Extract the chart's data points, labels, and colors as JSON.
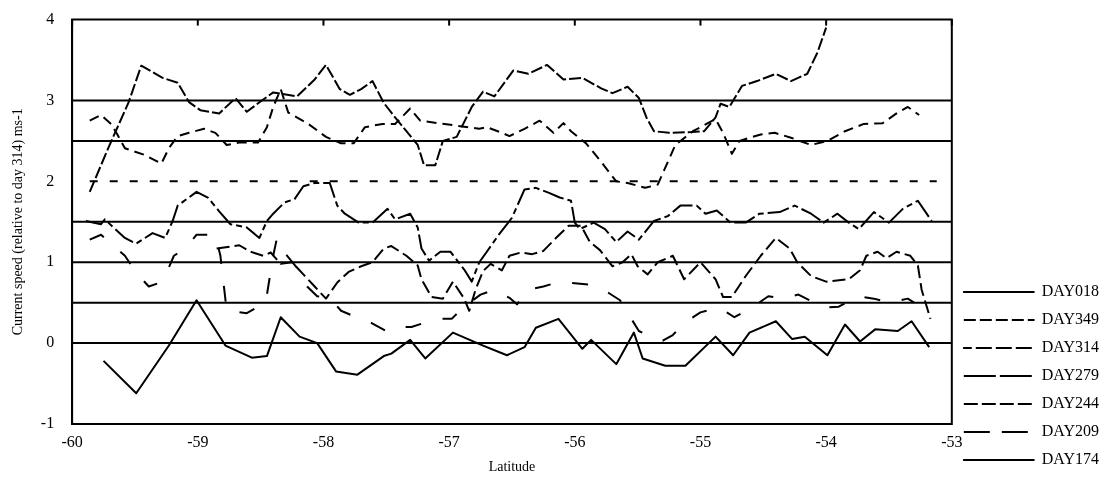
{
  "chart_data": {
    "type": "line",
    "xlabel": "Latitude",
    "ylabel": "Current speed (relative to day 314) ms-1",
    "xlim": [
      -60,
      -53
    ],
    "xticks": [
      -60,
      -59,
      -58,
      -57,
      -56,
      -55,
      -54,
      -53
    ],
    "ylim": [
      -1,
      4
    ],
    "yticks": [
      -1,
      0,
      1,
      2,
      3,
      4
    ],
    "grid": false,
    "legend": "right",
    "marker": "none",
    "ref_lines": [
      {
        "axis": "y",
        "value": 0,
        "color": "#000000",
        "line_style": "solid"
      },
      {
        "axis": "y",
        "value": 0.5,
        "color": "#000000",
        "line_style": "solid"
      },
      {
        "axis": "y",
        "value": 1,
        "color": "#000000",
        "line_style": "solid"
      },
      {
        "axis": "y",
        "value": 1.5,
        "color": "#000000",
        "line_style": "solid"
      },
      {
        "axis": "y",
        "value": 2.5,
        "color": "#000000",
        "line_style": "solid"
      },
      {
        "axis": "y",
        "value": 3,
        "color": "#000000",
        "line_style": "solid"
      }
    ],
    "series": [
      {
        "name": "DAY018",
        "color": "#000000",
        "line_style": "dashed",
        "x": [
          -59.86,
          -59.71,
          -59.55,
          -59.45,
          -59.28,
          -59.16,
          -59.07,
          -58.98,
          -58.83,
          -58.7,
          -58.61,
          -58.49,
          -58.4,
          -58.21,
          -58.07,
          -57.98,
          -57.87,
          -57.79,
          -57.7,
          -57.61,
          -57.52,
          -57.43,
          -57.25,
          -57.2,
          -57.17,
          -57.11,
          -57.05,
          -56.94,
          -56.82,
          -56.73,
          -56.64,
          -56.49,
          -56.37,
          -56.22,
          -56.09,
          -55.94,
          -55.79,
          -55.7,
          -55.58,
          -55.49,
          -55.43,
          -55.37,
          -55.25,
          -55.07,
          -54.97,
          -54.88,
          -54.84,
          -54.77,
          -54.67,
          -54.55,
          -54.4,
          -54.28,
          -54.15,
          -54.07,
          -54.0
        ],
        "values": [
          1.87,
          2.42,
          2.98,
          3.43,
          3.28,
          3.22,
          2.98,
          2.88,
          2.84,
          3.03,
          2.86,
          3.0,
          3.1,
          3.05,
          3.26,
          3.44,
          3.14,
          3.07,
          3.14,
          3.24,
          2.97,
          2.79,
          2.45,
          2.2,
          2.2,
          2.2,
          2.5,
          2.55,
          2.92,
          3.11,
          3.05,
          3.37,
          3.33,
          3.44,
          3.26,
          3.28,
          3.15,
          3.09,
          3.17,
          3.03,
          2.79,
          2.62,
          2.6,
          2.61,
          2.62,
          2.79,
          2.96,
          2.92,
          3.18,
          3.24,
          3.33,
          3.24,
          3.33,
          3.59,
          3.9
        ]
      },
      {
        "name": "DAY349",
        "color": "#000000",
        "line_style": "dashed",
        "x": [
          -59.86,
          -59.77,
          -59.69,
          -59.64,
          -59.58,
          -59.43,
          -59.29,
          -59.23,
          -59.16,
          -59.07,
          -58.95,
          -58.86,
          -58.77,
          -58.67,
          -58.52,
          -58.45,
          -58.4,
          -58.34,
          -58.28,
          -58.13,
          -57.98,
          -57.86,
          -57.76,
          -57.67,
          -57.53,
          -57.43,
          -57.31,
          -57.23,
          -56.76,
          -56.7,
          -56.58,
          -56.52,
          -56.4,
          -56.28,
          -56.17,
          -56.09,
          -56.03,
          -55.91,
          -55.79,
          -55.67,
          -55.58,
          -55.44,
          -55.34,
          -55.2,
          -55.06,
          -54.88,
          -54.82,
          -54.75,
          -54.69,
          -54.52,
          -54.41,
          -54.28,
          -54.12,
          -53.99,
          -53.85,
          -53.7,
          -53.55,
          -53.44,
          -53.35,
          -53.26
        ],
        "values": [
          2.75,
          2.82,
          2.71,
          2.58,
          2.41,
          2.33,
          2.22,
          2.41,
          2.56,
          2.6,
          2.65,
          2.6,
          2.45,
          2.48,
          2.48,
          2.67,
          2.92,
          3.14,
          2.85,
          2.72,
          2.55,
          2.47,
          2.47,
          2.67,
          2.71,
          2.71,
          2.9,
          2.75,
          2.65,
          2.67,
          2.6,
          2.56,
          2.65,
          2.75,
          2.6,
          2.72,
          2.62,
          2.47,
          2.24,
          2.0,
          1.98,
          1.92,
          1.96,
          2.45,
          2.62,
          2.77,
          2.6,
          2.34,
          2.5,
          2.58,
          2.6,
          2.54,
          2.45,
          2.5,
          2.62,
          2.71,
          2.72,
          2.84,
          2.92,
          2.82
        ]
      },
      {
        "name": "DAY314",
        "color": "#000000",
        "line_style": "dashed",
        "x": [
          -59.86,
          -53.12
        ],
        "values": [
          2,
          2
        ]
      },
      {
        "name": "DAY279",
        "color": "#000000",
        "line_style": "dashed",
        "x": [
          -59.89,
          -59.77,
          -59.74,
          -59.58,
          -59.49,
          -59.36,
          -59.26,
          -59.2,
          -59.16,
          -59.01,
          -58.92,
          -58.83,
          -58.74,
          -58.61,
          -58.51,
          -58.45,
          -58.4,
          -58.31,
          -58.23,
          -58.16,
          -58.07,
          -57.95,
          -57.89,
          -57.83,
          -57.72,
          -57.61,
          -57.49,
          -57.43,
          -57.31,
          -57.25,
          -57.22,
          -57.16,
          -57.07,
          -56.99,
          -56.88,
          -56.82,
          -56.76,
          -56.7,
          -56.6,
          -56.5,
          -56.4,
          -56.31,
          -56.21,
          -56.12,
          -56.03,
          -56.0,
          -55.96,
          -55.85,
          -55.76,
          -55.67,
          -55.58,
          -55.49,
          -55.37,
          -55.26,
          -55.16,
          -55.03,
          -54.96,
          -54.87,
          -54.76,
          -54.64,
          -54.53,
          -54.37,
          -54.25,
          -54.12,
          -54.02,
          -53.91,
          -53.82,
          -53.74,
          -53.62,
          -53.5,
          -53.39,
          -53.27,
          -53.16
        ],
        "values": [
          1.51,
          1.47,
          1.53,
          1.3,
          1.23,
          1.36,
          1.3,
          1.51,
          1.7,
          1.87,
          1.8,
          1.63,
          1.47,
          1.43,
          1.3,
          1.51,
          1.6,
          1.74,
          1.78,
          1.94,
          1.98,
          1.98,
          1.7,
          1.6,
          1.49,
          1.49,
          1.66,
          1.53,
          1.6,
          1.43,
          1.17,
          1.02,
          1.13,
          1.13,
          0.91,
          0.76,
          1.0,
          1.13,
          1.35,
          1.55,
          1.9,
          1.92,
          1.86,
          1.8,
          1.76,
          1.49,
          1.41,
          1.49,
          1.41,
          1.25,
          1.38,
          1.28,
          1.51,
          1.57,
          1.7,
          1.7,
          1.6,
          1.64,
          1.49,
          1.49,
          1.6,
          1.62,
          1.7,
          1.6,
          1.49,
          1.6,
          1.49,
          1.41,
          1.62,
          1.49,
          1.66,
          1.76,
          1.51
        ]
      },
      {
        "name": "DAY244",
        "color": "#000000",
        "line_style": "dashed",
        "x": [
          -58.85,
          -58.67,
          -58.58,
          -58.48,
          -58.42,
          -58.34,
          -58.25,
          -58.16,
          -58.07,
          -57.98,
          -57.89,
          -57.8,
          -57.7,
          -57.61,
          -57.52,
          -57.46,
          -57.34,
          -57.25,
          -57.22,
          -57.14,
          -57.05,
          -56.97,
          -56.88,
          -56.84,
          -56.79,
          -56.73,
          -56.67,
          -56.58,
          -56.52,
          -56.43,
          -56.34,
          -56.25,
          -56.15,
          -56.05,
          -55.95,
          -55.88,
          -55.8,
          -55.7,
          -55.62,
          -55.55,
          -55.5,
          -55.42,
          -55.34,
          -55.22,
          -55.13,
          -55.0,
          -54.88,
          -54.82,
          -54.75,
          -54.64,
          -54.52,
          -54.4,
          -54.29,
          -54.23,
          -54.12,
          -54.0,
          -53.82,
          -53.73,
          -53.68,
          -53.59,
          -53.52,
          -53.44,
          -53.33,
          -53.27,
          -53.24,
          -53.17
        ],
        "values": [
          1.17,
          1.21,
          1.13,
          1.08,
          1.12,
          0.98,
          1.0,
          0.85,
          0.7,
          0.55,
          0.75,
          0.88,
          0.95,
          1.0,
          1.17,
          1.2,
          1.08,
          0.96,
          0.79,
          0.57,
          0.55,
          0.76,
          0.55,
          0.4,
          0.66,
          0.89,
          0.98,
          0.9,
          1.08,
          1.12,
          1.1,
          1.14,
          1.3,
          1.45,
          1.45,
          1.25,
          1.15,
          0.95,
          1.0,
          1.1,
          0.95,
          0.85,
          1.0,
          1.08,
          0.79,
          1.0,
          0.79,
          0.57,
          0.57,
          0.83,
          1.08,
          1.3,
          1.17,
          1.0,
          0.83,
          0.76,
          0.79,
          0.9,
          1.08,
          1.13,
          1.05,
          1.13,
          1.08,
          0.96,
          0.66,
          0.3
        ]
      },
      {
        "name": "DAY209",
        "color": "#000000",
        "line_style": "dashed",
        "x": [
          -59.86,
          -59.77,
          -59.58,
          -59.49,
          -59.39,
          -59.28,
          -59.19,
          -59.1,
          -59.01,
          -58.86,
          -58.82,
          -58.77,
          -58.61,
          -58.46,
          -58.4,
          -58.37,
          -58.3,
          -58.22,
          -58.13,
          -58.05,
          -57.95,
          -57.86,
          -57.74,
          -57.62,
          -57.49,
          -57.4,
          -57.3,
          -57.2,
          -57.05,
          -56.98,
          -56.88,
          -56.75,
          -56.64,
          -56.52,
          -56.46,
          -56.37,
          -56.25,
          -56.12,
          -56.0,
          -55.85,
          -55.73,
          -55.64,
          -55.55,
          -55.49,
          -55.4,
          -55.3,
          -55.22,
          -55.13,
          -55.0,
          -54.85,
          -54.73,
          -54.58,
          -54.46,
          -54.35,
          -54.22,
          -54.12,
          -54.03,
          -53.9,
          -53.75,
          -53.62,
          -53.5,
          -53.35,
          -53.3
        ],
        "values": [
          1.28,
          1.34,
          1.08,
          0.87,
          0.7,
          0.76,
          1.08,
          1.17,
          1.34,
          1.34,
          1.08,
          0.4,
          0.37,
          0.5,
          1.08,
          1.3,
          1.1,
          0.95,
          0.7,
          0.58,
          0.56,
          0.4,
          0.32,
          0.25,
          0.14,
          0.2,
          0.2,
          0.25,
          0.3,
          0.3,
          0.45,
          0.6,
          0.66,
          0.56,
          0.48,
          0.66,
          0.7,
          0.76,
          0.74,
          0.72,
          0.62,
          0.53,
          0.3,
          0.15,
          0.08,
          0.03,
          0.1,
          0.25,
          0.38,
          0.44,
          0.32,
          0.45,
          0.58,
          0.55,
          0.6,
          0.52,
          0.44,
          0.45,
          0.58,
          0.55,
          0.5,
          0.55,
          0.5
        ]
      },
      {
        "name": "DAY174",
        "color": "#000000",
        "line_style": "solid",
        "x": [
          -59.75,
          -59.49,
          -59.23,
          -59.01,
          -58.78,
          -58.57,
          -58.45,
          -58.34,
          -58.19,
          -58.05,
          -57.9,
          -57.73,
          -57.52,
          -57.46,
          -57.31,
          -57.19,
          -56.97,
          -56.73,
          -56.54,
          -56.4,
          -56.31,
          -56.13,
          -55.94,
          -55.87,
          -55.67,
          -55.53,
          -55.46,
          -55.28,
          -55.22,
          -55.12,
          -54.88,
          -54.74,
          -54.61,
          -54.4,
          -54.27,
          -54.17,
          -53.99,
          -53.85,
          -53.73,
          -53.61,
          -53.43,
          -53.32,
          -53.18
        ],
        "values": [
          -0.22,
          -0.62,
          -0.03,
          0.53,
          -0.03,
          -0.18,
          -0.16,
          0.32,
          0.08,
          0.0,
          -0.35,
          -0.39,
          -0.16,
          -0.13,
          0.04,
          -0.19,
          0.13,
          -0.03,
          -0.15,
          -0.05,
          0.19,
          0.3,
          -0.07,
          0.04,
          -0.26,
          0.13,
          -0.19,
          -0.28,
          -0.28,
          -0.28,
          0.08,
          -0.15,
          0.13,
          0.27,
          0.05,
          0.08,
          -0.15,
          0.23,
          0.02,
          0.17,
          0.15,
          0.27,
          -0.05
        ]
      }
    ]
  }
}
